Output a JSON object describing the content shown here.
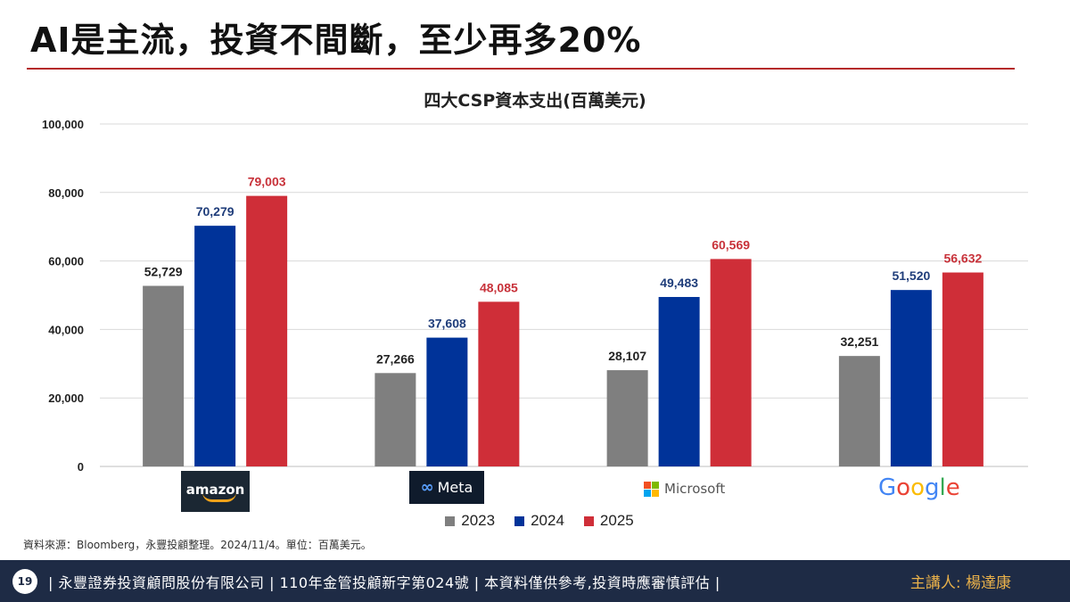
{
  "slide": {
    "title": "AI是主流，投資不間斷，至少再多20%"
  },
  "chart_data": {
    "type": "bar",
    "title": "四大CSP資本支出(百萬美元)",
    "categories": [
      "amazon",
      "Meta",
      "Microsoft",
      "Google"
    ],
    "series": [
      {
        "name": "2023",
        "color": "#7f7f7f",
        "values": [
          52729,
          27266,
          28107,
          32251
        ],
        "labels": [
          "52,729",
          "27,266",
          "28,107",
          "32,251"
        ],
        "label_color": "#222222"
      },
      {
        "name": "2024",
        "color": "#003399",
        "values": [
          70279,
          37608,
          49483,
          51520
        ],
        "labels": [
          "70,279",
          "37,608",
          "49,483",
          "51,520"
        ],
        "label_color": "#1f3d7a"
      },
      {
        "name": "2025",
        "color": "#cf2e38",
        "values": [
          79003,
          48085,
          60569,
          56632
        ],
        "labels": [
          "79,003",
          "48,085",
          "60,569",
          "56,632"
        ],
        "label_color": "#c8323a"
      }
    ],
    "ylim": [
      0,
      100000
    ],
    "yticks": [
      0,
      20000,
      40000,
      60000,
      80000,
      100000
    ],
    "ytick_labels": [
      "0",
      "20,000",
      "40,000",
      "60,000",
      "80,000",
      "100,000"
    ],
    "grid": true,
    "legend": "bottom"
  },
  "logos": {
    "amazon": {
      "text": "amazon",
      "icon": "amazon-logo"
    },
    "meta": {
      "symbol": "∞",
      "text": "Meta",
      "icon": "meta-logo"
    },
    "microsoft": {
      "text": "Microsoft",
      "icon": "microsoft-logo",
      "colors": [
        "#f25022",
        "#7fba00",
        "#00a4ef",
        "#ffb900"
      ]
    },
    "google": {
      "letters": [
        "G",
        "o",
        "o",
        "g",
        "l",
        "e"
      ],
      "colors": [
        "#4285f4",
        "#ea4335",
        "#fbbc05",
        "#4285f4",
        "#34a853",
        "#ea4335"
      ],
      "icon": "google-logo"
    }
  },
  "legend": {
    "items": [
      {
        "label": "2023",
        "color": "#7f7f7f"
      },
      {
        "label": "2024",
        "color": "#003399"
      },
      {
        "label": "2025",
        "color": "#cf2e38"
      }
    ]
  },
  "source_note": "資料來源：Bloomberg，永豐投顧整理。2024/11/4。單位：百萬美元。",
  "footer": {
    "page_number": "19",
    "text": "| 永豐證券投資顧問股份有限公司 | 110年金管投顧新字第024號 | 本資料僅供參考,投資時應審慎評估 |",
    "presenter": "主講人: 楊達康"
  },
  "colors": {
    "title_rule": "#b52a2a",
    "footer_bg": "#1e2b45",
    "presenter": "#e8b04a"
  }
}
